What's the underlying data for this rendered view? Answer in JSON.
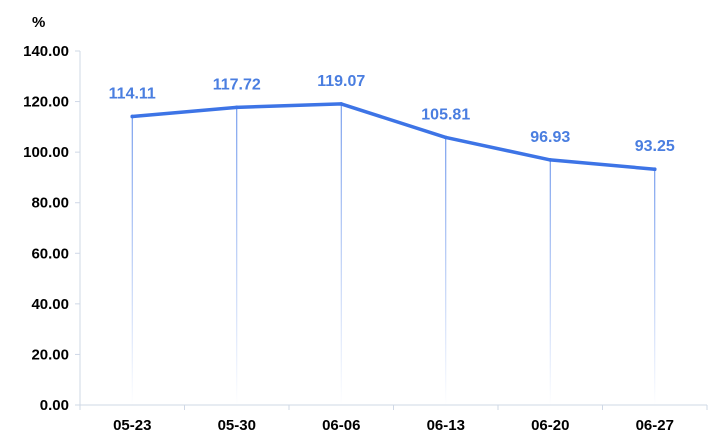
{
  "chart_data": {
    "type": "line",
    "unit_label": "%",
    "categories": [
      "05-23",
      "05-30",
      "06-06",
      "06-13",
      "06-20",
      "06-27"
    ],
    "values": [
      114.11,
      117.72,
      119.07,
      105.81,
      96.93,
      93.25
    ],
    "value_labels": [
      "114.11",
      "117.72",
      "119.07",
      "105.81",
      "96.93",
      "93.25"
    ],
    "ylim": [
      0,
      140
    ],
    "yticks": [
      "0.00",
      "20.00",
      "40.00",
      "60.00",
      "80.00",
      "100.00",
      "120.00",
      "140.00"
    ],
    "ytick_values": [
      0,
      20,
      40,
      60,
      80,
      100,
      120,
      140
    ],
    "grid": false,
    "drop_lines": true,
    "colors": {
      "line": "#3d74e6",
      "label": "#4a7ee0",
      "axis": "#cfd8e6"
    }
  }
}
